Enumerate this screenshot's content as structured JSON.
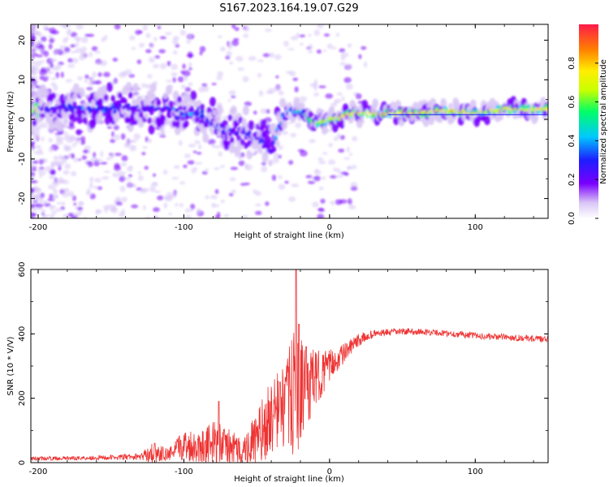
{
  "title": "S167.2023.164.19.07.G29",
  "chart_data": [
    {
      "type": "heatmap",
      "name": "spectrogram",
      "xlabel": "Height of straight line (km)",
      "ylabel": "Frequency (Hz)",
      "xlim": [
        -205,
        150
      ],
      "ylim": [
        -25,
        24
      ],
      "xticks": [
        -200,
        -100,
        0,
        100
      ],
      "yticks": [
        -20,
        -10,
        0,
        10,
        20
      ],
      "colorbar": {
        "label": "Normalized spectral amplitude",
        "range": [
          0,
          1
        ],
        "ticks": [
          "0.0",
          "0.2",
          "0.4",
          "0.6",
          "0.8"
        ],
        "colors": [
          "#ffffff",
          "#d9c6f5",
          "#7a00ff",
          "#1d1dff",
          "#00c8ff",
          "#00ff66",
          "#c8ff00",
          "#ffee00",
          "#ff8000",
          "#ff1a4a"
        ]
      },
      "ridge": [
        {
          "x": -200,
          "y": 2.5,
          "a": 0.25
        },
        {
          "x": -190,
          "y": 2.5,
          "a": 0.3
        },
        {
          "x": -180,
          "y": 3,
          "a": 0.3
        },
        {
          "x": -170,
          "y": 3,
          "a": 0.35
        },
        {
          "x": -160,
          "y": 2.5,
          "a": 0.35
        },
        {
          "x": -150,
          "y": 3,
          "a": 0.35
        },
        {
          "x": -140,
          "y": 3,
          "a": 0.3
        },
        {
          "x": -130,
          "y": 2.5,
          "a": 0.3
        },
        {
          "x": -120,
          "y": 3,
          "a": 0.3
        },
        {
          "x": -110,
          "y": 2.5,
          "a": 0.3
        },
        {
          "x": -100,
          "y": 1.5,
          "a": 0.35
        },
        {
          "x": -90,
          "y": 1,
          "a": 0.35
        },
        {
          "x": -80,
          "y": -1,
          "a": 0.3
        },
        {
          "x": -72,
          "y": -3,
          "a": 0.3
        },
        {
          "x": -65,
          "y": -3,
          "a": 0.3
        },
        {
          "x": -58,
          "y": -3,
          "a": 0.3
        },
        {
          "x": -50,
          "y": -5,
          "a": 0.3
        },
        {
          "x": -45,
          "y": -6,
          "a": 0.3
        },
        {
          "x": -40,
          "y": -8,
          "a": 0.3
        },
        {
          "x": -36,
          "y": -3,
          "a": 0.35
        },
        {
          "x": -30,
          "y": 2,
          "a": 0.4
        },
        {
          "x": -20,
          "y": 2,
          "a": 0.5
        },
        {
          "x": -10,
          "y": -1,
          "a": 0.6
        },
        {
          "x": 0,
          "y": 0,
          "a": 0.7
        },
        {
          "x": 10,
          "y": 1,
          "a": 0.8
        },
        {
          "x": 20,
          "y": 1.5,
          "a": 0.75
        },
        {
          "x": 30,
          "y": 1.5,
          "a": 0.75
        },
        {
          "x": 40,
          "y": 1.5,
          "a": 0.8
        },
        {
          "x": 50,
          "y": 1.5,
          "a": 0.8
        },
        {
          "x": 60,
          "y": 1.5,
          "a": 0.8
        },
        {
          "x": 70,
          "y": 2,
          "a": 0.75
        },
        {
          "x": 80,
          "y": 2,
          "a": 0.8
        },
        {
          "x": 90,
          "y": 2,
          "a": 0.75
        },
        {
          "x": 100,
          "y": 1.5,
          "a": 0.7
        },
        {
          "x": 110,
          "y": 2,
          "a": 0.7
        },
        {
          "x": 120,
          "y": 2.5,
          "a": 0.7
        },
        {
          "x": 130,
          "y": 2.5,
          "a": 0.7
        },
        {
          "x": 140,
          "y": 2.5,
          "a": 0.7
        },
        {
          "x": 150,
          "y": 2.5,
          "a": 0.7
        }
      ]
    },
    {
      "type": "line",
      "name": "snr",
      "xlabel": "Height of straight line (km)",
      "ylabel": "SNR (10 * V/V)",
      "xlim": [
        -205,
        150
      ],
      "ylim": [
        0,
        600
      ],
      "xticks": [
        -200,
        -100,
        0,
        100
      ],
      "yticks": [
        0,
        200,
        400,
        600
      ],
      "color": "#ee3333",
      "envelope": [
        {
          "x": -205,
          "y": 12,
          "n": 6
        },
        {
          "x": -180,
          "y": 14,
          "n": 6
        },
        {
          "x": -150,
          "y": 16,
          "n": 8
        },
        {
          "x": -130,
          "y": 18,
          "n": 10
        },
        {
          "x": -122,
          "y": 30,
          "n": 30
        },
        {
          "x": -110,
          "y": 25,
          "n": 20
        },
        {
          "x": -100,
          "y": 55,
          "n": 50
        },
        {
          "x": -90,
          "y": 50,
          "n": 50
        },
        {
          "x": -80,
          "y": 60,
          "n": 70
        },
        {
          "x": -70,
          "y": 50,
          "n": 60
        },
        {
          "x": -60,
          "y": 35,
          "n": 40
        },
        {
          "x": -50,
          "y": 70,
          "n": 90
        },
        {
          "x": -40,
          "y": 140,
          "n": 120
        },
        {
          "x": -30,
          "y": 180,
          "n": 140
        },
        {
          "x": -24,
          "y": 220,
          "n": 200
        },
        {
          "x": -18,
          "y": 220,
          "n": 150
        },
        {
          "x": -10,
          "y": 260,
          "n": 90
        },
        {
          "x": 0,
          "y": 300,
          "n": 50
        },
        {
          "x": 10,
          "y": 340,
          "n": 30
        },
        {
          "x": 20,
          "y": 380,
          "n": 20
        },
        {
          "x": 30,
          "y": 400,
          "n": 12
        },
        {
          "x": 50,
          "y": 408,
          "n": 10
        },
        {
          "x": 70,
          "y": 405,
          "n": 10
        },
        {
          "x": 90,
          "y": 398,
          "n": 10
        },
        {
          "x": 110,
          "y": 392,
          "n": 10
        },
        {
          "x": 130,
          "y": 388,
          "n": 10
        },
        {
          "x": 150,
          "y": 382,
          "n": 10
        }
      ],
      "spikes": [
        {
          "x": -23,
          "y": 600
        },
        {
          "x": -21,
          "y": 430
        },
        {
          "x": -76,
          "y": 190
        },
        {
          "x": -120,
          "y": 60
        },
        {
          "x": -34,
          "y": 250
        },
        {
          "x": -16,
          "y": 360
        }
      ]
    }
  ]
}
